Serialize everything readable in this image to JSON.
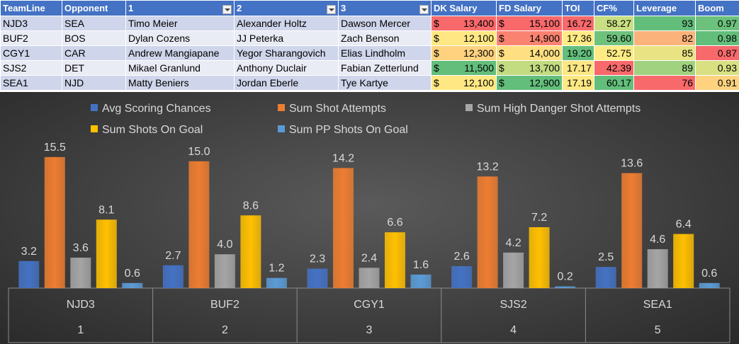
{
  "table": {
    "headers": [
      "TeamLine",
      "Opponent",
      "1",
      "2",
      "3",
      "DK Salary",
      "FD Salary",
      "TOI",
      "CF%",
      "Leverage",
      "Boom"
    ],
    "filter_columns": [
      2,
      3,
      4
    ],
    "currency_symbol": "$",
    "rows": [
      {
        "team": "NJD3",
        "opp": "SEA",
        "p1": "Timo Meier",
        "p2": "Alexander Holtz",
        "p3": "Dawson Mercer",
        "dk": "13,400",
        "fd": "15,100",
        "toi": "16.72",
        "cf": "58.27",
        "lev": "93",
        "boom": "0.97",
        "colors": {
          "dk": "#f8696b",
          "fd": "#f8696b",
          "toi": "#f8696b",
          "cf": "#c9df82",
          "lev": "#63be7b",
          "boom": "#6cc17c"
        }
      },
      {
        "team": "BUF2",
        "opp": "BOS",
        "p1": "Dylan Cozens",
        "p2": "JJ Peterka",
        "p3": "Zach Benson",
        "dk": "12,100",
        "fd": "14,900",
        "toi": "17.36",
        "cf": "59.60",
        "lev": "82",
        "boom": "0.98",
        "colors": {
          "dk": "#ffe884",
          "fd": "#f98370",
          "toi": "#ffeb84",
          "cf": "#6fc27c",
          "lev": "#fbb37b",
          "boom": "#63be7b"
        }
      },
      {
        "team": "CGY1",
        "opp": "CAR",
        "p1": "Andrew Mangiapane",
        "p2": "Yegor Sharangovich",
        "p3": "Elias Lindholm",
        "dk": "12,300",
        "fd": "14,000",
        "toi": "19.20",
        "cf": "52.75",
        "lev": "85",
        "boom": "0.87",
        "colors": {
          "dk": "#fed27f",
          "fd": "#fee082",
          "toi": "#63be7b",
          "cf": "#ffeb84",
          "lev": "#e9e383",
          "boom": "#f8696b"
        }
      },
      {
        "team": "SJS2",
        "opp": "DET",
        "p1": "Mikael Granlund",
        "p2": "Anthony Duclair",
        "p3": "Fabian Zetterlund",
        "dk": "11,500",
        "fd": "13,700",
        "toi": "17.17",
        "cf": "42.39",
        "lev": "89",
        "boom": "0.93",
        "colors": {
          "dk": "#63be7b",
          "fd": "#c3dc81",
          "toi": "#fee783",
          "cf": "#f8696b",
          "lev": "#a0d27f",
          "boom": "#d8e082"
        }
      },
      {
        "team": "SEA1",
        "opp": "NJD",
        "p1": "Matty Beniers",
        "p2": "Jordan Eberle",
        "p3": "Tye Kartye",
        "dk": "12,100",
        "fd": "12,900",
        "toi": "17.19",
        "cf": "60.17",
        "lev": "76",
        "boom": "0.91",
        "colors": {
          "dk": "#ffe884",
          "fd": "#63be7b",
          "toi": "#fee883",
          "cf": "#63be7b",
          "lev": "#f8696b",
          "boom": "#fed27f"
        }
      }
    ]
  },
  "chart_data": {
    "type": "bar",
    "categories": [
      "NJD3",
      "BUF2",
      "CGY1",
      "SJS2",
      "SEA1"
    ],
    "category_indices": [
      "1",
      "2",
      "3",
      "4",
      "5"
    ],
    "series": [
      {
        "name": "Avg Scoring Chances",
        "color": "#4472c4",
        "values": [
          3.2,
          2.7,
          2.3,
          2.6,
          2.5
        ]
      },
      {
        "name": "Sum Shot Attempts",
        "color": "#ed7d31",
        "values": [
          15.5,
          15.0,
          14.2,
          13.2,
          13.6
        ]
      },
      {
        "name": "Sum High Danger Shot Attempts",
        "color": "#a5a5a5",
        "values": [
          3.6,
          4.0,
          2.4,
          4.2,
          4.6
        ]
      },
      {
        "name": "Sum Shots On Goal",
        "color": "#ffc000",
        "values": [
          8.1,
          8.6,
          6.6,
          7.2,
          6.4
        ]
      },
      {
        "name": "Sum PP Shots On Goal",
        "color": "#5b9bd5",
        "values": [
          0.6,
          1.2,
          1.6,
          0.2,
          0.6
        ]
      }
    ],
    "ylim": [
      0,
      18
    ],
    "grid": false,
    "legend_position": "top",
    "data_labels": true
  }
}
